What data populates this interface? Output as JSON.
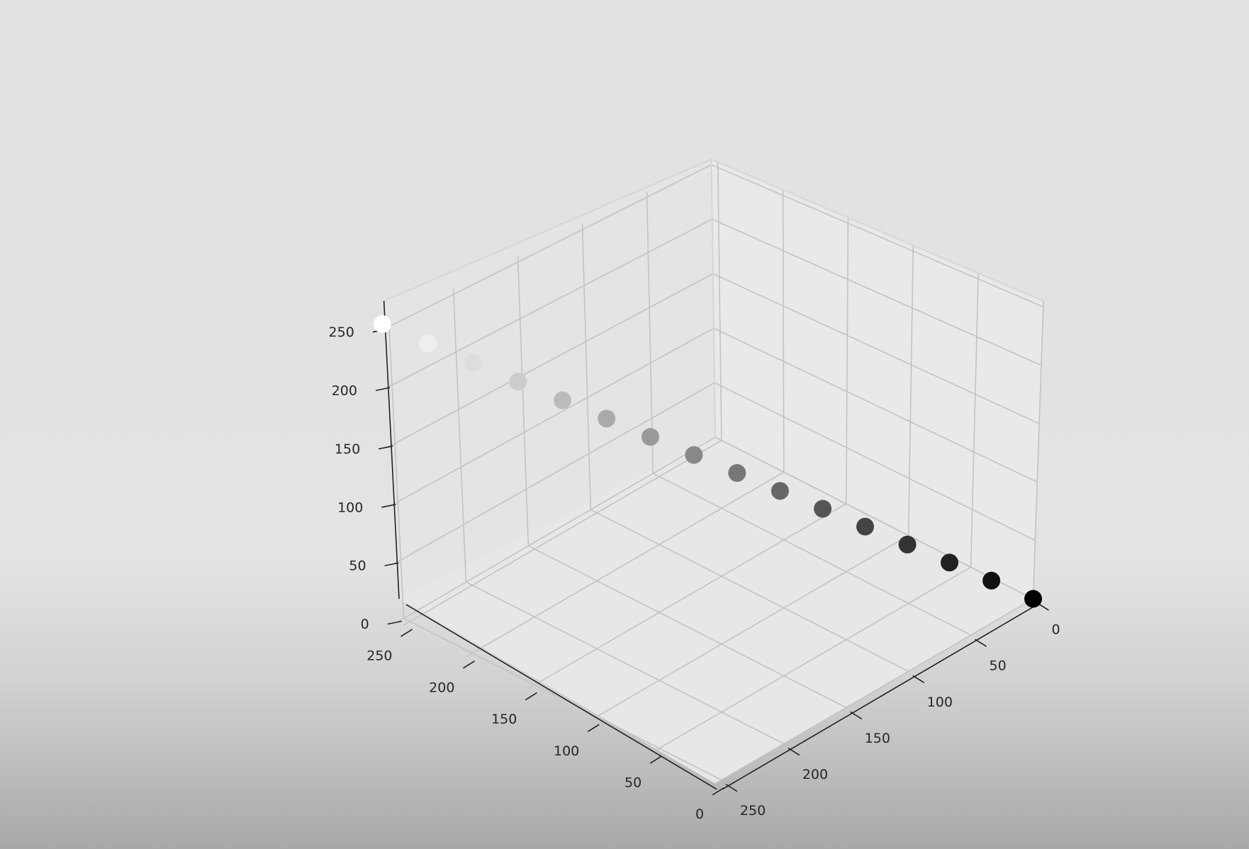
{
  "chart_data": {
    "type": "scatter3d",
    "title": "",
    "xlabel": "",
    "ylabel": "",
    "zlabel": "",
    "xlim": [
      0,
      255
    ],
    "ylim": [
      0,
      255
    ],
    "zlim": [
      0,
      255
    ],
    "grid": true,
    "x_ticks": [
      "0",
      "50",
      "100",
      "150",
      "200",
      "250"
    ],
    "y_ticks": [
      "0",
      "50",
      "100",
      "150",
      "200",
      "250"
    ],
    "z_ticks": [
      "0",
      "50",
      "100",
      "150",
      "200",
      "250"
    ],
    "point_color_rule": "grayscale equal to z value",
    "points": [
      {
        "x": 0,
        "y": 0,
        "z": 0
      },
      {
        "x": 17,
        "y": 17,
        "z": 17
      },
      {
        "x": 34,
        "y": 34,
        "z": 34
      },
      {
        "x": 51,
        "y": 51,
        "z": 51
      },
      {
        "x": 68,
        "y": 68,
        "z": 68
      },
      {
        "x": 85,
        "y": 85,
        "z": 85
      },
      {
        "x": 102,
        "y": 102,
        "z": 102
      },
      {
        "x": 119,
        "y": 119,
        "z": 119
      },
      {
        "x": 136,
        "y": 136,
        "z": 136
      },
      {
        "x": 153,
        "y": 153,
        "z": 153
      },
      {
        "x": 170,
        "y": 170,
        "z": 170
      },
      {
        "x": 187,
        "y": 187,
        "z": 187
      },
      {
        "x": 204,
        "y": 204,
        "z": 204
      },
      {
        "x": 221,
        "y": 221,
        "z": 221
      },
      {
        "x": 238,
        "y": 238,
        "z": 238
      },
      {
        "x": 255,
        "y": 255,
        "z": 255
      }
    ]
  }
}
